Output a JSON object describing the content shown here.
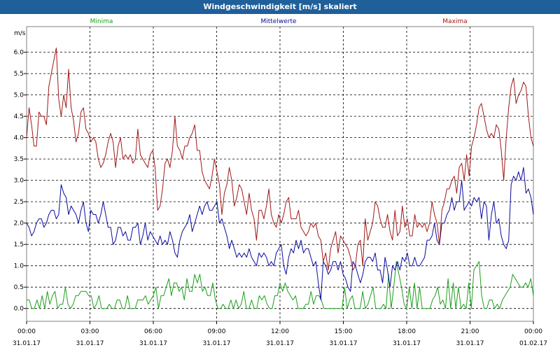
{
  "window": {
    "title": "Windgeschwindigkeit [m/s] skaliert"
  },
  "colors": {
    "min": "#1aa01a",
    "mean": "#0a0aa0",
    "max": "#a01818",
    "grid": "#000000",
    "titlebar": "#1f5f9a"
  },
  "chart_data": {
    "type": "line",
    "title": "Windgeschwindigkeit [m/s] skaliert",
    "ylabel": "m/s",
    "xlabel": "",
    "ylim": [
      -0.3,
      6.6
    ],
    "yticks": [
      0.0,
      0.5,
      1.0,
      1.5,
      2.0,
      2.5,
      3.0,
      3.5,
      4.0,
      4.5,
      5.0,
      5.5,
      6.0
    ],
    "ytick_labels": [
      "0.0",
      "0.5",
      "1.0",
      "1.5",
      "2.0",
      "2.5",
      "3.0",
      "3.5",
      "4.0",
      "4.5",
      "5.0",
      "5.5",
      "6.0"
    ],
    "xlim": [
      0,
      24
    ],
    "xticks": [
      {
        "time": "00:00",
        "date": "31.01.17"
      },
      {
        "time": "03:00",
        "date": "31.01.17"
      },
      {
        "time": "06:00",
        "date": "31.01.17"
      },
      {
        "time": "09:00",
        "date": "31.01.17"
      },
      {
        "time": "12:00",
        "date": "31.01.17"
      },
      {
        "time": "15:00",
        "date": "31.01.17"
      },
      {
        "time": "18:00",
        "date": "31.01.17"
      },
      {
        "time": "21:00",
        "date": "31.01.17"
      },
      {
        "time": "00:00",
        "date": "01.02.17"
      }
    ],
    "grid": true,
    "legend_placement": "top",
    "series": [
      {
        "name": "Minima",
        "values": [
          0.2,
          0.2,
          0.0,
          0.0,
          0.2,
          0.0,
          0.3,
          0.0,
          0.4,
          0.1,
          0.3,
          0.4,
          0.0,
          0.1,
          0.1,
          0.5,
          0.1,
          0.0,
          0.1,
          0.3,
          0.3,
          0.4,
          0.4,
          0.4,
          0.3,
          0.3,
          0.0,
          0.1,
          0.3,
          0.0,
          0.0,
          0.0,
          0.1,
          0.0,
          0.0,
          0.2,
          0.2,
          0.0,
          0.0,
          0.3,
          0.0,
          0.0,
          0.0,
          0.2,
          0.2,
          0.2,
          0.3,
          0.1,
          0.2,
          0.3,
          0.5,
          0.0,
          0.3,
          0.3,
          0.5,
          0.7,
          0.3,
          0.6,
          0.6,
          0.4,
          0.5,
          0.2,
          0.7,
          0.4,
          0.4,
          0.8,
          0.6,
          0.8,
          0.4,
          0.5,
          0.3,
          0.3,
          0.6,
          0.2,
          0.0,
          0.0,
          0.1,
          0.0,
          0.0,
          0.2,
          0.0,
          0.2,
          0.0,
          0.1,
          0.4,
          0.0,
          0.0,
          0.2,
          0.0,
          0.0,
          0.3,
          0.2,
          0.3,
          0.1,
          0.0,
          0.0,
          0.3,
          0.3,
          0.6,
          0.4,
          0.6,
          0.4,
          0.3,
          0.2,
          0.3,
          0.0,
          0.0,
          0.0,
          0.1,
          0.1,
          0.4,
          0.1,
          0.3,
          0.3,
          0.2,
          0.0,
          0.0,
          0.0,
          0.0,
          0.0,
          0.0,
          0.0,
          0.0,
          0.5,
          0.0,
          0.2,
          0.3,
          0.0,
          0.0,
          0.0,
          0.4,
          0.0,
          0.1,
          0.3,
          0.5,
          0.0,
          0.0,
          0.0,
          0.1,
          0.0,
          0.8,
          0.0,
          0.5,
          1.1,
          0.8,
          0.5,
          0.1,
          0.0,
          0.5,
          0.0,
          0.6,
          0.0,
          0.5,
          0.0,
          0.0,
          0.0,
          0.0,
          0.2,
          0.3,
          0.5,
          0.1,
          0.2,
          0.0,
          0.7,
          0.0,
          0.6,
          0.0,
          0.5,
          0.0,
          0.1,
          0.0,
          0.6,
          0.0,
          0.9,
          1.0,
          1.1,
          0.3,
          0.0,
          0.0,
          0.2,
          0.2,
          0.0,
          0.1,
          0.0,
          0.2,
          0.3,
          0.4,
          0.5,
          0.8,
          0.7,
          0.6,
          0.5,
          0.5,
          0.6,
          0.5,
          0.7,
          0.3
        ]
      },
      {
        "name": "Mittelwerte",
        "values": [
          2.0,
          1.9,
          1.7,
          1.8,
          2.0,
          2.1,
          2.1,
          1.9,
          2.0,
          2.2,
          2.3,
          2.3,
          2.1,
          2.2,
          2.9,
          2.7,
          2.6,
          2.2,
          2.4,
          2.3,
          2.2,
          2.0,
          2.3,
          2.5,
          2.0,
          1.8,
          2.3,
          2.2,
          2.2,
          2.0,
          2.2,
          2.5,
          2.2,
          1.9,
          1.9,
          1.5,
          1.6,
          1.9,
          1.9,
          1.7,
          1.8,
          1.6,
          1.6,
          1.9,
          1.9,
          2.0,
          1.5,
          1.7,
          2.0,
          1.6,
          1.8,
          1.7,
          1.6,
          1.5,
          1.7,
          1.5,
          1.6,
          1.5,
          1.8,
          1.6,
          1.3,
          1.2,
          1.6,
          1.8,
          1.9,
          2.0,
          2.2,
          1.8,
          2.0,
          2.2,
          2.4,
          2.2,
          2.4,
          2.5,
          2.3,
          2.3,
          2.4,
          2.5,
          2.0,
          2.1,
          1.9,
          1.7,
          1.4,
          1.6,
          1.4,
          1.2,
          1.3,
          1.2,
          1.3,
          1.2,
          1.4,
          1.2,
          1.1,
          1.0,
          1.3,
          1.2,
          1.3,
          1.2,
          1.0,
          1.1,
          1.0,
          1.3,
          1.4,
          1.5,
          1.0,
          0.8,
          1.2,
          1.4,
          1.3,
          1.6,
          1.4,
          1.6,
          1.3,
          1.4,
          1.4,
          1.2,
          1.0,
          1.1,
          0.6,
          0.2,
          1.1,
          1.0,
          0.8,
          0.9,
          1.1,
          1.1,
          0.9,
          1.1,
          0.8,
          0.7,
          0.5,
          0.4,
          1.1,
          1.0,
          0.8,
          0.6,
          0.8,
          1.1,
          1.2,
          1.2,
          1.1,
          1.3,
          0.9,
          0.9,
          0.6,
          1.2,
          0.9,
          0.5,
          1.0,
          0.9,
          1.1,
          0.9,
          1.2,
          1.1,
          1.3,
          1.0,
          1.0,
          1.2,
          1.0,
          1.0,
          1.1,
          1.2,
          1.6,
          1.6,
          1.7,
          2.0,
          1.6,
          1.5,
          2.0,
          2.0,
          2.2,
          2.3,
          2.6,
          2.3,
          2.5,
          2.5,
          3.0,
          2.3,
          2.4,
          2.5,
          2.4,
          2.6,
          2.5,
          2.6,
          2.1,
          2.5,
          2.4,
          1.6,
          2.2,
          2.5,
          2.0,
          2.1,
          1.7,
          1.5,
          1.4,
          1.6,
          2.9,
          3.1,
          3.0,
          3.2,
          3.0,
          3.3,
          2.7,
          2.8,
          2.6,
          2.2
        ]
      },
      {
        "name": "Maxima",
        "values": [
          4.0,
          4.7,
          4.3,
          3.8,
          3.8,
          4.6,
          4.5,
          4.5,
          4.3,
          5.2,
          5.5,
          5.8,
          6.1,
          4.9,
          4.5,
          5.0,
          4.7,
          5.6,
          4.7,
          4.4,
          3.9,
          4.1,
          4.6,
          4.7,
          4.2,
          4.1,
          3.9,
          4.0,
          3.9,
          3.5,
          3.3,
          3.4,
          3.6,
          3.9,
          4.1,
          3.9,
          3.3,
          3.8,
          4.0,
          3.5,
          3.6,
          3.5,
          3.6,
          3.4,
          3.5,
          4.2,
          3.6,
          3.5,
          3.4,
          3.3,
          3.6,
          3.7,
          3.3,
          2.3,
          2.4,
          2.8,
          3.4,
          3.5,
          3.3,
          3.7,
          4.5,
          3.8,
          3.7,
          3.5,
          3.8,
          3.8,
          4.0,
          4.1,
          4.3,
          3.7,
          3.7,
          3.2,
          3.0,
          2.9,
          2.8,
          3.1,
          3.5,
          3.2,
          2.9,
          2.2,
          2.7,
          2.9,
          3.3,
          3.0,
          2.4,
          2.6,
          2.9,
          2.8,
          2.5,
          2.2,
          2.7,
          2.3,
          2.1,
          1.6,
          2.3,
          2.3,
          2.1,
          2.4,
          2.8,
          2.2,
          2.0,
          1.9,
          2.2,
          2.0,
          2.2,
          2.5,
          2.6,
          2.1,
          2.1,
          2.1,
          2.3,
          1.9,
          1.8,
          1.7,
          1.8,
          2.0,
          1.9,
          2.0,
          1.7,
          1.6,
          1.1,
          1.3,
          0.9,
          1.4,
          1.6,
          1.8,
          1.3,
          1.7,
          1.6,
          1.5,
          1.4,
          1.2,
          0.9,
          1.0,
          1.5,
          1.6,
          1.0,
          2.1,
          1.6,
          1.8,
          2.0,
          2.5,
          2.4,
          2.1,
          1.9,
          1.9,
          2.2,
          1.8,
          1.6,
          2.3,
          1.7,
          1.8,
          2.4,
          1.9,
          2.1,
          1.7,
          1.7,
          2.2,
          1.9,
          2.0,
          1.9,
          2.0,
          1.8,
          2.0,
          2.5,
          2.2,
          2.0,
          1.5,
          2.3,
          2.5,
          2.8,
          2.8,
          3.0,
          3.1,
          2.7,
          3.3,
          3.4,
          3.0,
          3.6,
          3.1,
          3.8,
          4.0,
          4.3,
          4.7,
          4.8,
          4.5,
          4.2,
          4.0,
          4.1,
          4.0,
          4.3,
          4.2,
          3.7,
          3.0,
          4.0,
          4.7,
          5.2,
          5.4,
          4.8,
          5.0,
          5.1,
          5.3,
          5.2,
          4.5,
          4.0,
          3.8
        ]
      }
    ]
  }
}
